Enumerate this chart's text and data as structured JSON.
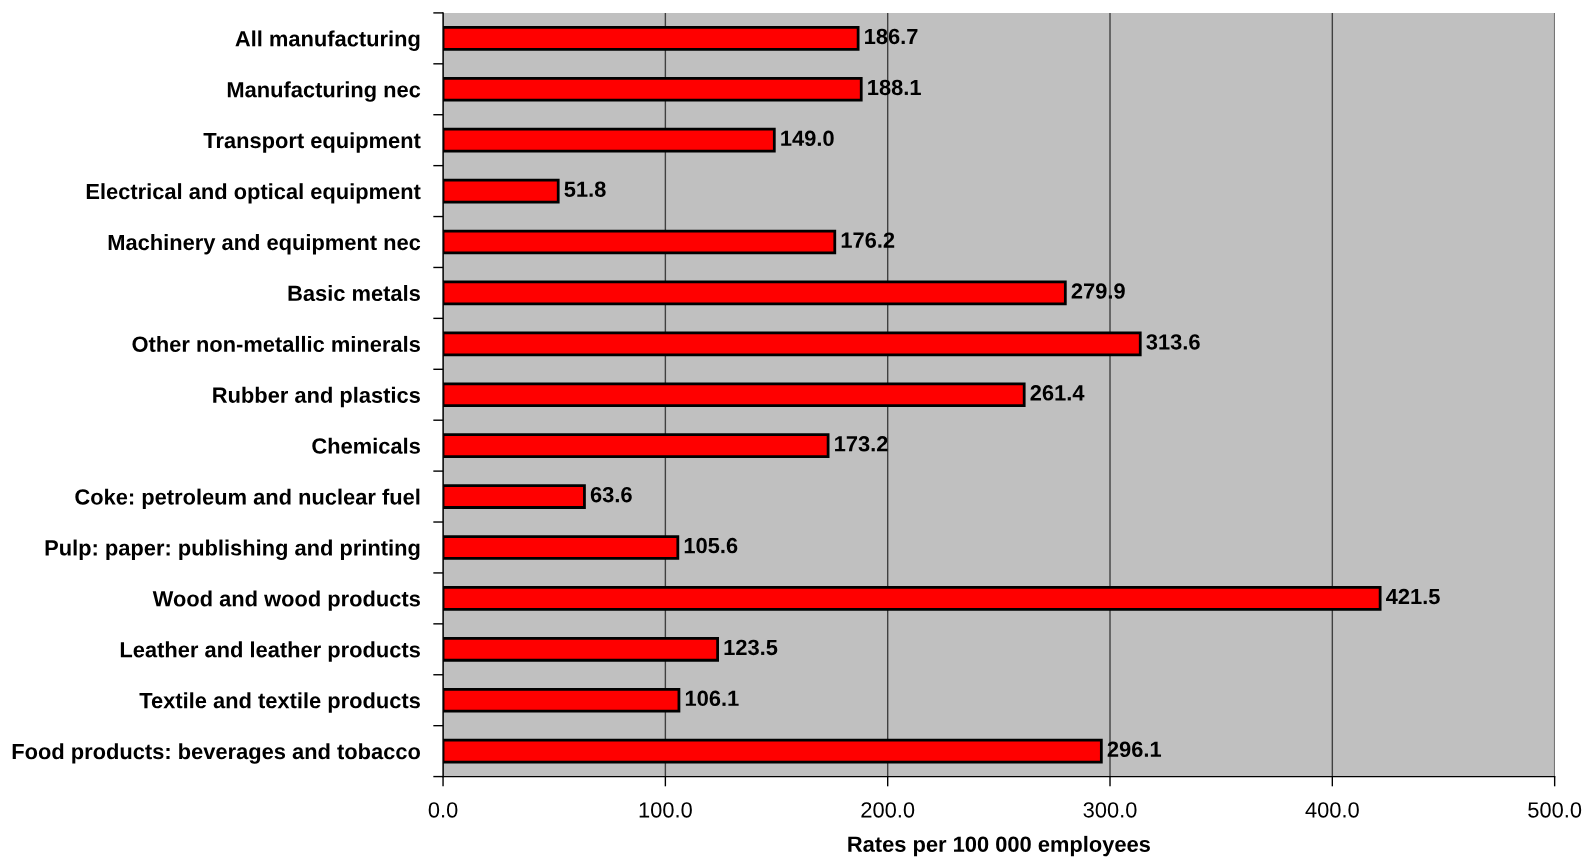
{
  "chart_data": {
    "type": "bar",
    "orientation": "horizontal",
    "categories": [
      "All manufacturing",
      "Manufacturing nec",
      "Transport equipment",
      "Electrical and optical equipment",
      "Machinery and equipment nec",
      "Basic metals",
      "Other non-metallic minerals",
      "Rubber and plastics",
      "Chemicals",
      "Coke: petroleum and nuclear fuel",
      "Pulp: paper: publishing and printing",
      "Wood and wood products",
      "Leather and leather products",
      "Textile and textile products",
      "Food products: beverages and tobacco"
    ],
    "values": [
      186.7,
      188.1,
      149.0,
      51.8,
      176.2,
      279.9,
      313.6,
      261.4,
      173.2,
      63.6,
      105.6,
      421.5,
      123.5,
      106.1,
      296.1
    ],
    "value_labels": [
      "186.7",
      "188.1",
      "149.0",
      "51.8",
      "176.2",
      "279.9",
      "313.6",
      "261.4",
      "173.2",
      "63.6",
      "105.6",
      "421.5",
      "123.5",
      "106.1",
      "296.1"
    ],
    "color": "#ff0000",
    "xlabel": "Rates per 100 000 employees",
    "xlim": [
      0,
      500
    ],
    "xticks": [
      {
        "value": 0,
        "label": "0.0"
      },
      {
        "value": 100,
        "label": "100.0"
      },
      {
        "value": 200,
        "label": "200.0"
      },
      {
        "value": 300,
        "label": "300.0"
      },
      {
        "value": 400,
        "label": "400.0"
      },
      {
        "value": 500,
        "label": "500.0"
      }
    ],
    "grid": "x"
  }
}
